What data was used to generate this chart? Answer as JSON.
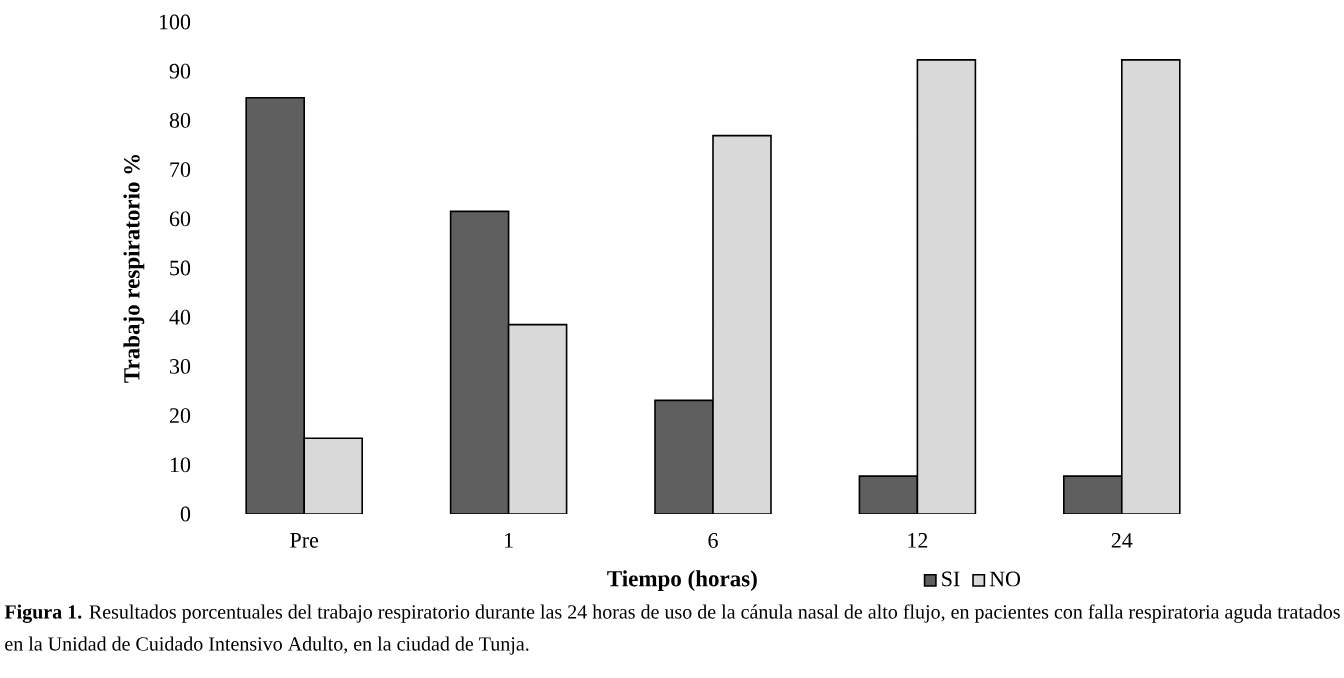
{
  "chart_data": {
    "type": "bar",
    "xlabel": "Tiempo (horas)",
    "ylabel": "Trabajo respiratorio %",
    "categories": [
      "Pre",
      "1",
      "6",
      "12",
      "24"
    ],
    "series": [
      {
        "name": "SI",
        "color": "#5f5f5f",
        "values": [
          84.6,
          61.5,
          23.1,
          7.7,
          7.7
        ]
      },
      {
        "name": "NO",
        "color": "#d9d9d9",
        "values": [
          15.4,
          38.5,
          76.9,
          92.3,
          92.3
        ]
      }
    ],
    "ylim": [
      0,
      100
    ],
    "yticks": [
      0,
      10,
      20,
      30,
      40,
      50,
      60,
      70,
      80,
      90,
      100
    ],
    "legend": "bottom",
    "annotations": [
      "**Figura 1.** Resultados porcentuales del trabajo respiratorio durante las 24 horas de uso de la cánula nasal de alto flujo, en pacientes con falla respiratoria aguda tratados en la Unidad de Cuidado Intensivo Adulto, en la ciudad de Tunja."
    ]
  }
}
